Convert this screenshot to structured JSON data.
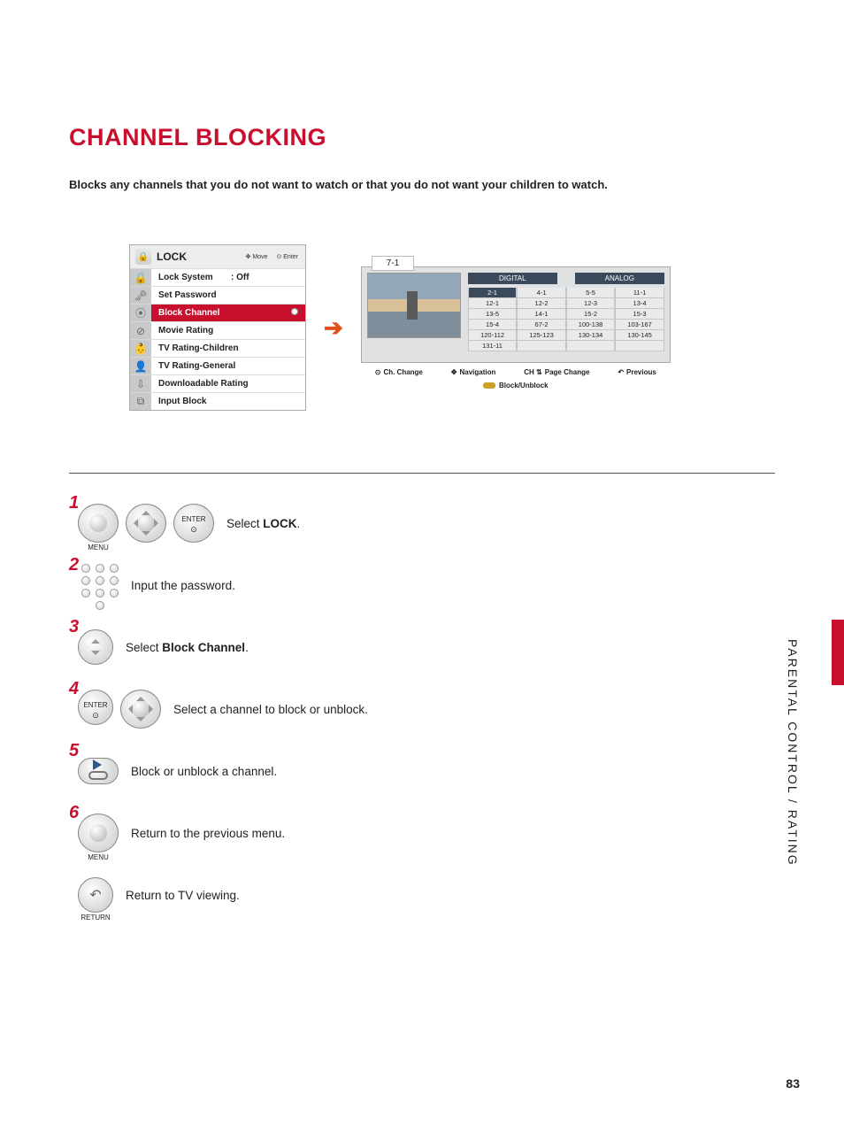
{
  "title": "CHANNEL BLOCKING",
  "lead": "Blocks any channels that you do not want to watch or that you do not want your children to watch.",
  "side_label": "PARENTAL CONTROL / RATING",
  "page_number": "83",
  "lock_menu": {
    "header": "LOCK",
    "hint_move": "Move",
    "hint_enter": "Enter",
    "items": [
      {
        "icon": "🔒",
        "label": "Lock System",
        "value": ": Off",
        "selected": false
      },
      {
        "icon": "🗝",
        "label": "Set Password",
        "value": "",
        "selected": false
      },
      {
        "icon": "⦿",
        "label": "Block Channel",
        "value": "",
        "selected": true
      },
      {
        "icon": "⊘",
        "label": "Movie Rating",
        "value": "",
        "selected": false
      },
      {
        "icon": "👶",
        "label": "TV Rating-Children",
        "value": "",
        "selected": false
      },
      {
        "icon": "👤",
        "label": "TV Rating-General",
        "value": "",
        "selected": false
      },
      {
        "icon": "⇩",
        "label": "Downloadable Rating",
        "value": "",
        "selected": false
      },
      {
        "icon": "⧉",
        "label": "Input Block",
        "value": "",
        "selected": false
      }
    ]
  },
  "channel_panel": {
    "current": "7-1",
    "tabs": [
      "DIGITAL",
      "ANALOG"
    ],
    "columns": [
      [
        "2-1",
        "12-1",
        "13-5",
        "15-4",
        "120-112",
        "131-11"
      ],
      [
        "4-1",
        "12-2",
        "14-1",
        "67-2",
        "125-123",
        ""
      ],
      [
        "5-5",
        "12-3",
        "15-2",
        "100-138",
        "130-134",
        ""
      ],
      [
        "11-1",
        "13-4",
        "15-3",
        "103-167",
        "130-145",
        ""
      ]
    ],
    "legend": {
      "ch_change": "Ch. Change",
      "navigation": "Navigation",
      "page_prefix": "CH",
      "page_change": "Page Change",
      "previous": "Previous",
      "block_unblock": "Block/Unblock"
    }
  },
  "steps": {
    "s1_pre": "Select ",
    "s1_b": "LOCK",
    "s1_post": ".",
    "s2": "Input the password.",
    "s3_pre": "Select ",
    "s3_b": "Block Channel",
    "s3_post": ".",
    "s4": "Select a channel to block or unblock.",
    "s5": "Block or unblock a channel.",
    "s6": "Return to the previous menu.",
    "s7": "Return to TV viewing."
  },
  "btn_caps": {
    "menu": "MENU",
    "enter": "ENTER",
    "return": "RETURN"
  },
  "colors": {
    "accent": "#c8102e",
    "arrow": "#e34f1a",
    "tab_bg": "#3b4a5a"
  }
}
